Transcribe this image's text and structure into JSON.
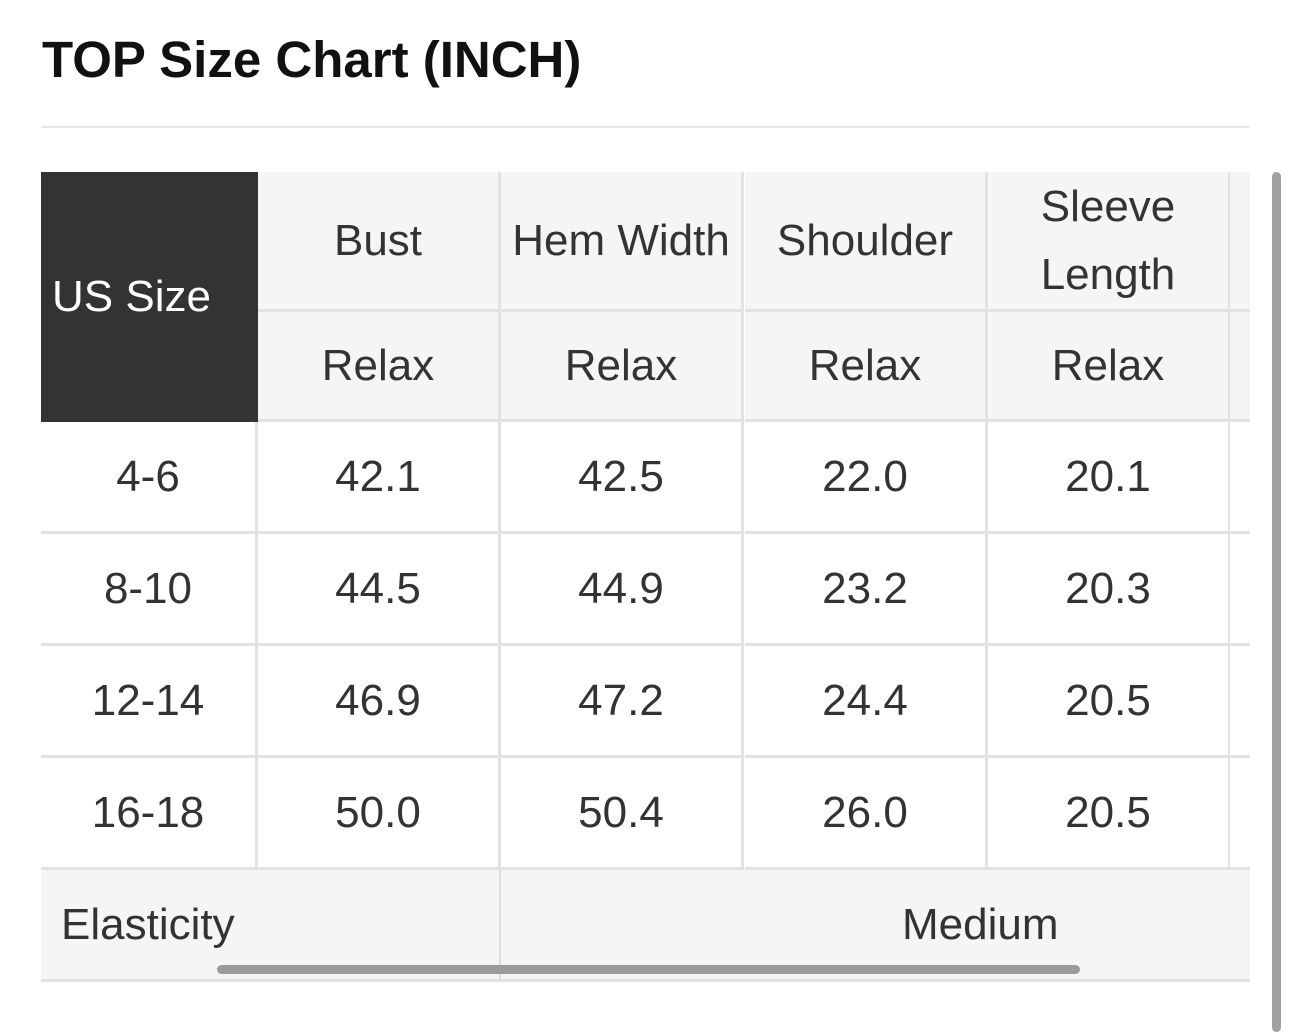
{
  "title": "TOP Size Chart (INCH)",
  "table": {
    "size_header": "US Size",
    "columns": [
      {
        "name": "Bust",
        "sub": "Relax"
      },
      {
        "name": "Hem Width",
        "sub": "Relax"
      },
      {
        "name": "Shoulder",
        "sub": "Relax"
      },
      {
        "name": "Sleeve Length",
        "sub": "Relax"
      }
    ],
    "rows": [
      {
        "size": "4-6",
        "values": [
          "42.1",
          "42.5",
          "22.0",
          "20.1"
        ]
      },
      {
        "size": "8-10",
        "values": [
          "44.5",
          "44.9",
          "23.2",
          "20.3"
        ]
      },
      {
        "size": "12-14",
        "values": [
          "46.9",
          "47.2",
          "24.4",
          "20.5"
        ]
      },
      {
        "size": "16-18",
        "values": [
          "50.0",
          "50.4",
          "26.0",
          "20.5"
        ]
      }
    ],
    "footer": {
      "label": "Elasticity",
      "value": "Medium"
    }
  },
  "colors": {
    "header_dark": "#333333",
    "header_bg": "#f4f5f6",
    "border": "#e2e2e2"
  }
}
